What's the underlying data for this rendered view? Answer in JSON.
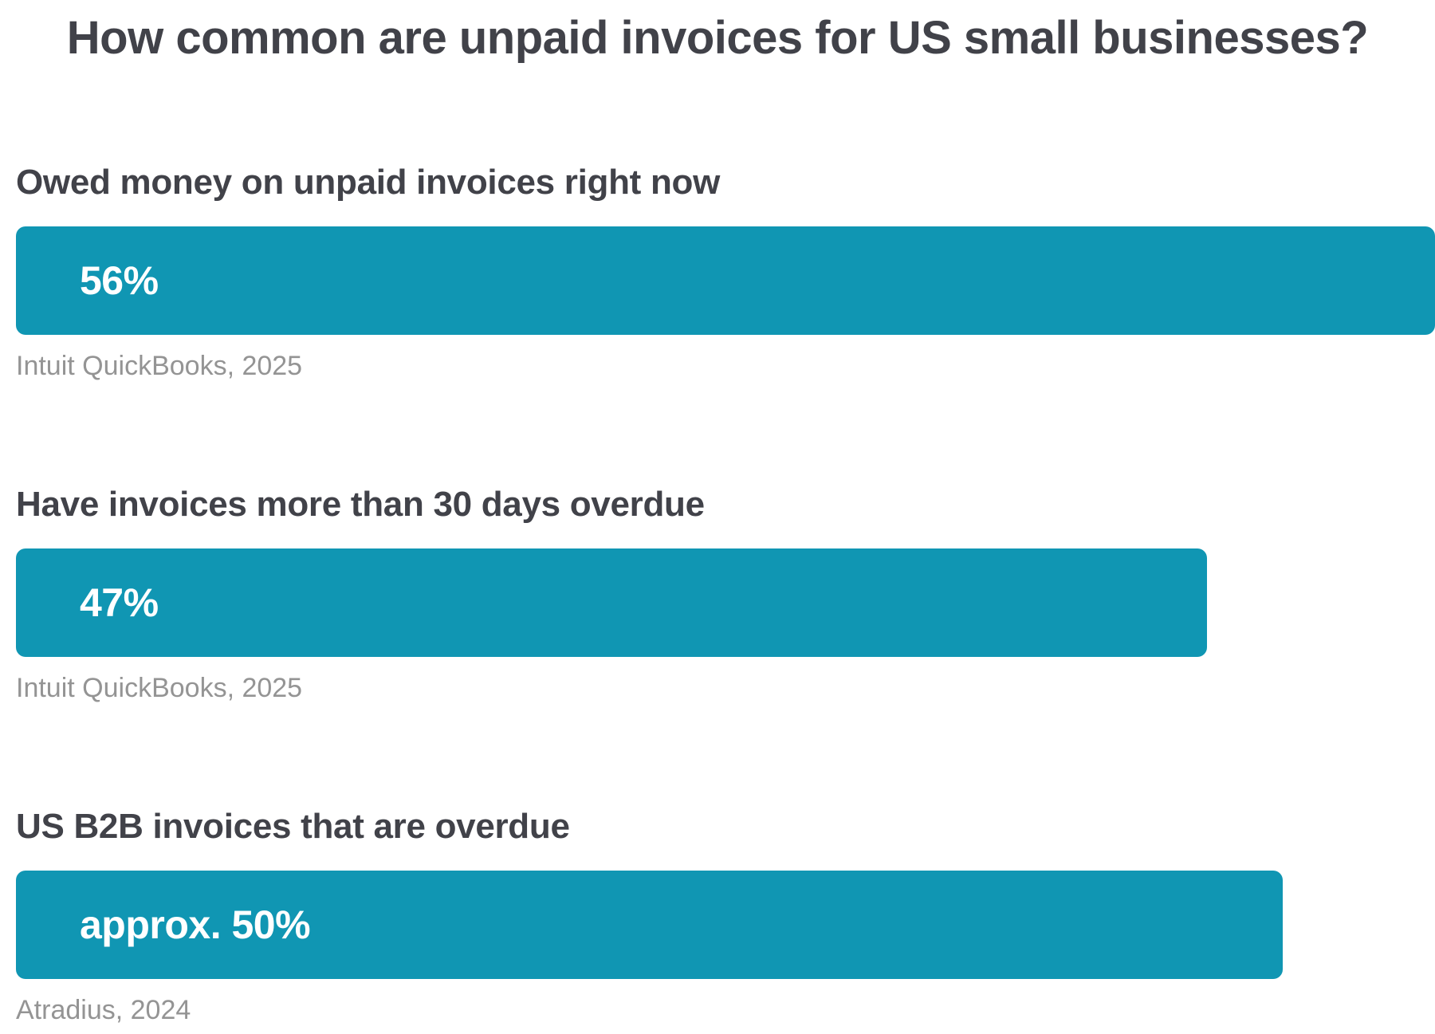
{
  "title": "How common are unpaid invoices for US small businesses?",
  "accent_color": "#1096b3",
  "text_color": "#414249",
  "source_color": "#949494",
  "chart_data": {
    "type": "bar",
    "orientation": "horizontal",
    "title": "How common are unpaid invoices for US small businesses?",
    "xlim": [
      0,
      56
    ],
    "categories": [
      "Owed money on unpaid invoices right now",
      "Have invoices more than 30 days overdue",
      "US B2B invoices that are overdue"
    ],
    "values": [
      56,
      47,
      50
    ],
    "value_labels": [
      "56%",
      "47%",
      "approx. 50%"
    ],
    "sources": [
      "Intuit QuickBooks, 2025",
      "Intuit QuickBooks, 2025",
      "Atradius, 2024"
    ],
    "grid": false,
    "legend": "none"
  }
}
